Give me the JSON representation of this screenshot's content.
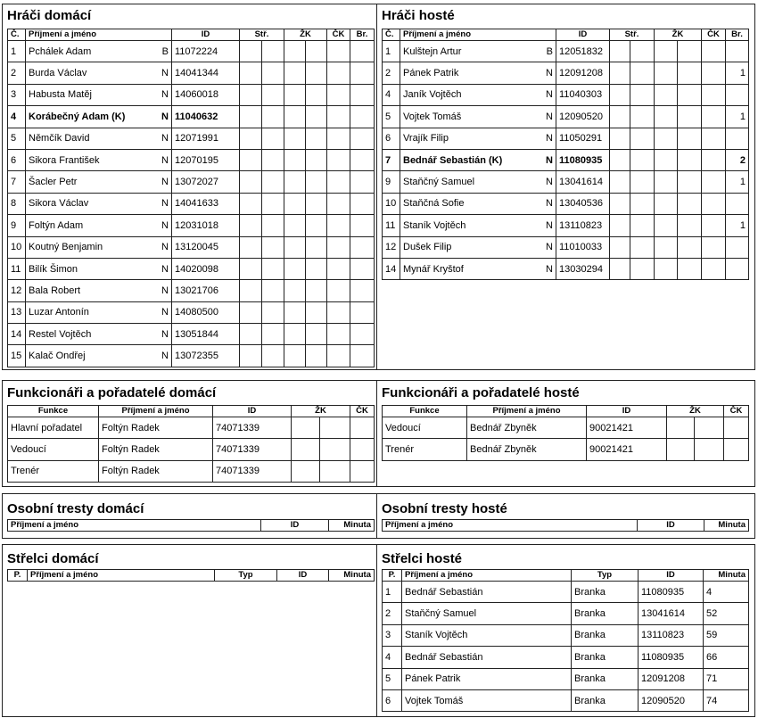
{
  "players": {
    "home": {
      "title": "Hráči domácí",
      "headers": [
        "Č.",
        "Příjmení a jméno",
        "ID",
        "Stř.",
        "ŽK",
        "ČK",
        "Br."
      ],
      "rows": [
        {
          "no": "1",
          "name": "Pchálek Adam",
          "type": "B",
          "id": "11072224",
          "goals": "",
          "captain": false
        },
        {
          "no": "2",
          "name": "Burda Václav",
          "type": "N",
          "id": "14041344",
          "goals": "",
          "captain": false
        },
        {
          "no": "3",
          "name": "Habusta Matěj",
          "type": "N",
          "id": "14060018",
          "goals": "",
          "captain": false
        },
        {
          "no": "4",
          "name": "Korábečný Adam (K)",
          "type": "N",
          "id": "11040632",
          "goals": "",
          "captain": true
        },
        {
          "no": "5",
          "name": "Němčík David",
          "type": "N",
          "id": "12071991",
          "goals": "",
          "captain": false
        },
        {
          "no": "6",
          "name": "Sikora František",
          "type": "N",
          "id": "12070195",
          "goals": "",
          "captain": false
        },
        {
          "no": "7",
          "name": "Šacler Petr",
          "type": "N",
          "id": "13072027",
          "goals": "",
          "captain": false
        },
        {
          "no": "8",
          "name": "Sikora Václav",
          "type": "N",
          "id": "14041633",
          "goals": "",
          "captain": false
        },
        {
          "no": "9",
          "name": "Foltýn Adam",
          "type": "N",
          "id": "12031018",
          "goals": "",
          "captain": false
        },
        {
          "no": "10",
          "name": "Koutný Benjamin",
          "type": "N",
          "id": "13120045",
          "goals": "",
          "captain": false
        },
        {
          "no": "11",
          "name": "Bilík Šimon",
          "type": "N",
          "id": "14020098",
          "goals": "",
          "captain": false
        },
        {
          "no": "12",
          "name": "Bala Robert",
          "type": "N",
          "id": "13021706",
          "goals": "",
          "captain": false
        },
        {
          "no": "13",
          "name": "Luzar Antonín",
          "type": "N",
          "id": "14080500",
          "goals": "",
          "captain": false
        },
        {
          "no": "14",
          "name": "Restel Vojtěch",
          "type": "N",
          "id": "13051844",
          "goals": "",
          "captain": false
        },
        {
          "no": "15",
          "name": "Kalač Ondřej",
          "type": "N",
          "id": "13072355",
          "goals": "",
          "captain": false
        }
      ]
    },
    "away": {
      "title": "Hráči hosté",
      "headers": [
        "Č.",
        "Příjmení a jméno",
        "ID",
        "Stř.",
        "ŽK",
        "ČK",
        "Br."
      ],
      "rows": [
        {
          "no": "1",
          "name": "Kulštejn Artur",
          "type": "B",
          "id": "12051832",
          "goals": "",
          "captain": false
        },
        {
          "no": "2",
          "name": "Pánek Patrik",
          "type": "N",
          "id": "12091208",
          "goals": "1",
          "captain": false
        },
        {
          "no": "4",
          "name": "Janík Vojtěch",
          "type": "N",
          "id": "11040303",
          "goals": "",
          "captain": false
        },
        {
          "no": "5",
          "name": "Vojtek Tomáš",
          "type": "N",
          "id": "12090520",
          "goals": "1",
          "captain": false
        },
        {
          "no": "6",
          "name": "Vrajík Filip",
          "type": "N",
          "id": "11050291",
          "goals": "",
          "captain": false
        },
        {
          "no": "7",
          "name": "Bednář Sebastián (K)",
          "type": "N",
          "id": "11080935",
          "goals": "2",
          "captain": true
        },
        {
          "no": "9",
          "name": "Staňčný Samuel",
          "type": "N",
          "id": "13041614",
          "goals": "1",
          "captain": false
        },
        {
          "no": "10",
          "name": "Staňčná Sofie",
          "type": "N",
          "id": "13040536",
          "goals": "",
          "captain": false
        },
        {
          "no": "11",
          "name": "Staník Vojtěch",
          "type": "N",
          "id": "13110823",
          "goals": "1",
          "captain": false
        },
        {
          "no": "12",
          "name": "Dušek Filip",
          "type": "N",
          "id": "11010033",
          "goals": "",
          "captain": false
        },
        {
          "no": "14",
          "name": "Mynář Kryštof",
          "type": "N",
          "id": "13030294",
          "goals": "",
          "captain": false
        }
      ]
    }
  },
  "officials": {
    "home": {
      "title": "Funkcionáři a pořadatelé domácí",
      "headers": [
        "Funkce",
        "Příjmení a jméno",
        "ID",
        "ŽK",
        "ČK"
      ],
      "rows": [
        [
          "Hlavní pořadatel",
          "Foltýn Radek",
          "74071339"
        ],
        [
          "Vedoucí",
          "Foltýn Radek",
          "74071339"
        ],
        [
          "Trenér",
          "Foltýn Radek",
          "74071339"
        ]
      ]
    },
    "away": {
      "title": "Funkcionáři a pořadatelé hosté",
      "headers": [
        "Funkce",
        "Příjmení a jméno",
        "ID",
        "ŽK",
        "ČK"
      ],
      "rows": [
        [
          "Vedoucí",
          "Bednář Zbyněk",
          "90021421"
        ],
        [
          "Trenér",
          "Bednář Zbyněk",
          "90021421"
        ]
      ]
    }
  },
  "penalties": {
    "home": {
      "title": "Osobní tresty domácí",
      "headers": [
        "Příjmení a jméno",
        "ID",
        "Minuta"
      ],
      "rows": []
    },
    "away": {
      "title": "Osobní tresty hosté",
      "headers": [
        "Příjmení a jméno",
        "ID",
        "Minuta"
      ],
      "rows": []
    }
  },
  "scorers": {
    "home": {
      "title": "Střelci domácí",
      "headers": [
        "P.",
        "Příjmení a jméno",
        "Typ",
        "ID",
        "Minuta"
      ],
      "rows": []
    },
    "away": {
      "title": "Střelci hosté",
      "headers": [
        "P.",
        "Příjmení a jméno",
        "Typ",
        "ID",
        "Minuta"
      ],
      "rows": [
        [
          "1",
          "Bednář Sebastián",
          "Branka",
          "11080935",
          "4"
        ],
        [
          "2",
          "Staňčný Samuel",
          "Branka",
          "13041614",
          "52"
        ],
        [
          "3",
          "Staník Vojtěch",
          "Branka",
          "13110823",
          "59"
        ],
        [
          "4",
          "Bednář Sebastián",
          "Branka",
          "11080935",
          "66"
        ],
        [
          "5",
          "Pánek Patrik",
          "Branka",
          "12091208",
          "71"
        ],
        [
          "6",
          "Vojtek Tomáš",
          "Branka",
          "12090520",
          "74"
        ]
      ]
    }
  }
}
